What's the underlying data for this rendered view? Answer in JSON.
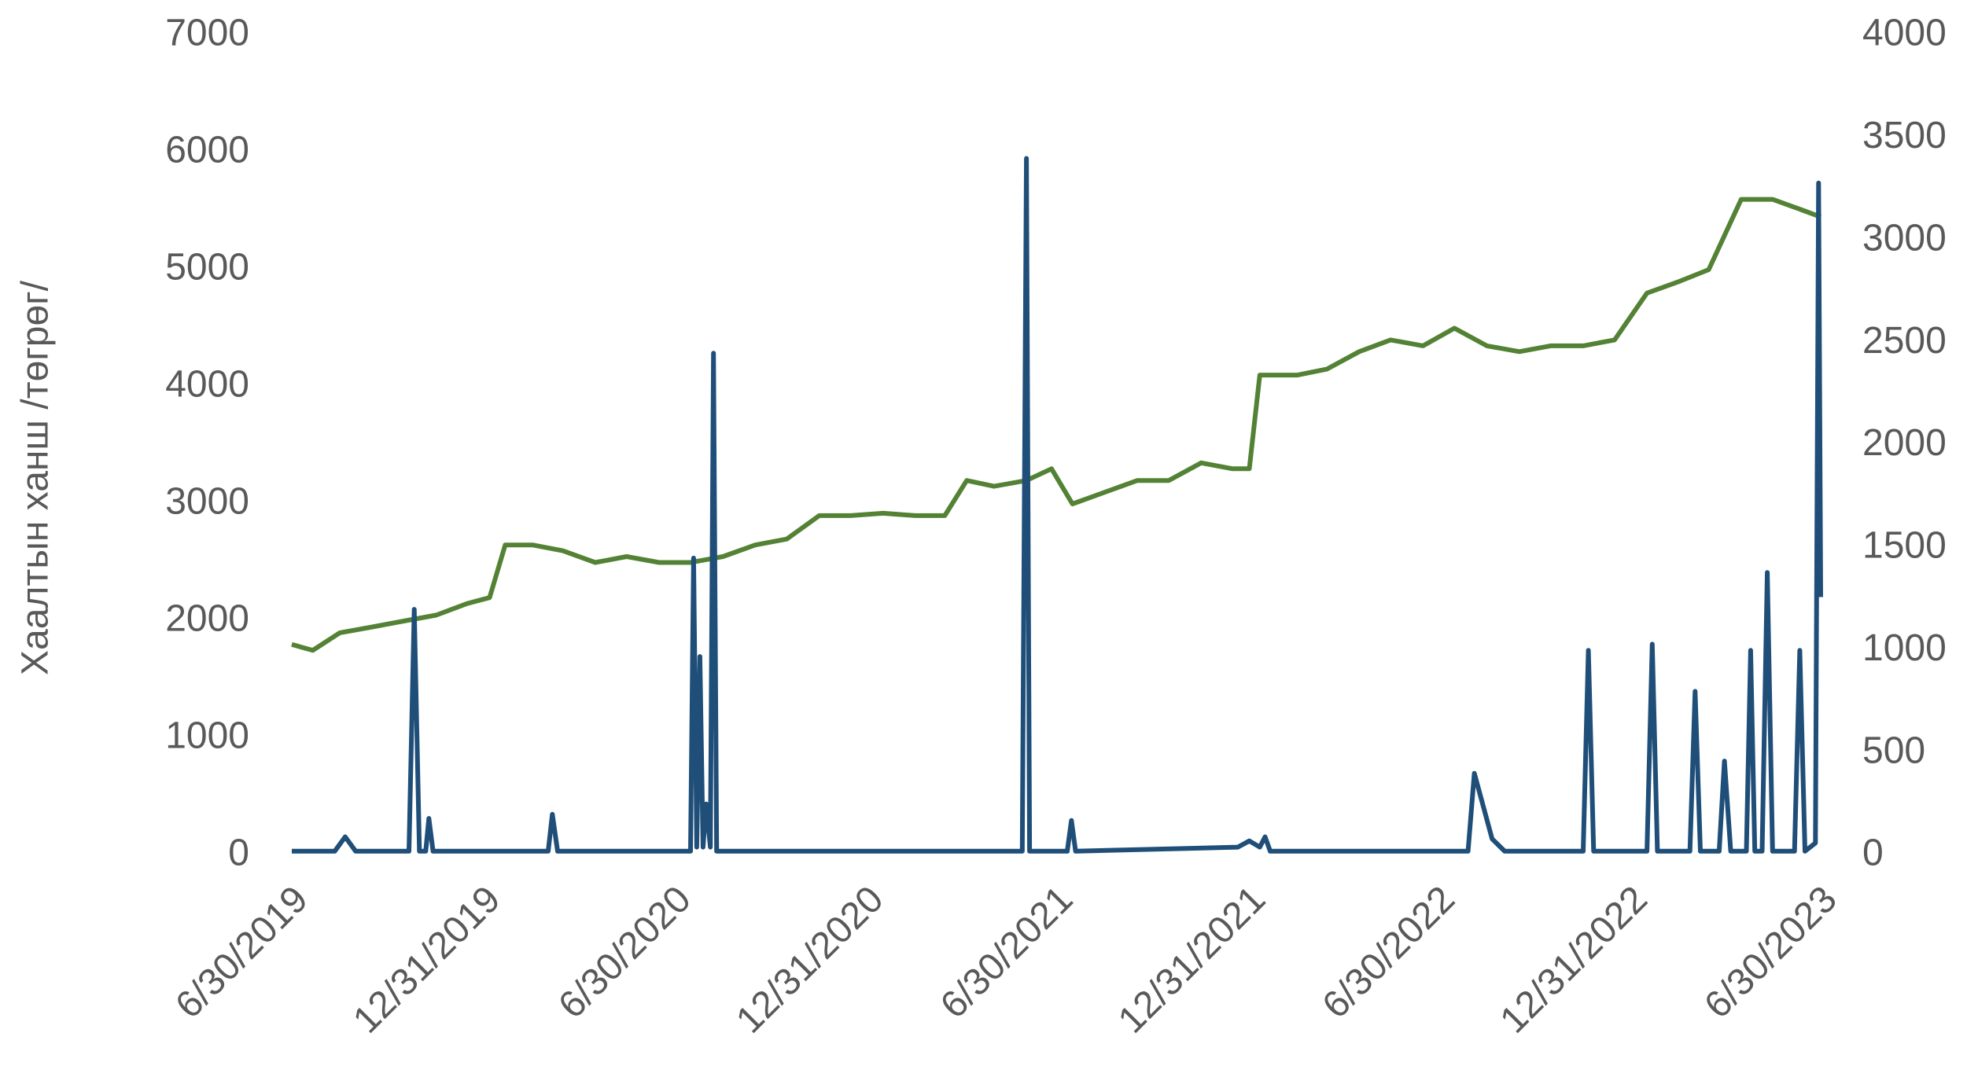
{
  "chart_data": {
    "type": "line",
    "ylabel": "Хаалтын ханш /төгрөг/",
    "xlim": [
      "6/30/2019",
      "6/30/2023"
    ],
    "xticks": [
      "6/30/2019",
      "12/31/2019",
      "6/30/2020",
      "12/31/2020",
      "6/30/2021",
      "12/31/2021",
      "6/30/2022",
      "12/31/2022",
      "6/30/2023"
    ],
    "ylim": [
      0,
      7000
    ],
    "yticks": [
      0,
      1000,
      2000,
      3000,
      4000,
      5000,
      6000,
      7000
    ],
    "y2lim": [
      0,
      4000
    ],
    "y2ticks": [
      0,
      500,
      1000,
      1500,
      2000,
      2500,
      3000,
      3500,
      4000
    ],
    "series": [
      {
        "color": "#548235",
        "x": [
          "6/30/2019",
          "7/20/2019",
          "8/15/2019",
          "9/15/2019",
          "10/15/2019",
          "11/15/2019",
          "12/15/2019",
          "1/5/2020",
          "1/20/2020",
          "2/15/2020",
          "3/15/2020",
          "4/15/2020",
          "5/15/2020",
          "6/15/2020",
          "7/15/2020",
          "8/15/2020",
          "9/15/2020",
          "10/15/2020",
          "11/15/2020",
          "12/15/2020",
          "1/15/2021",
          "2/15/2021",
          "3/15/2021",
          "4/5/2021",
          "5/1/2021",
          "6/1/2021",
          "6/25/2021",
          "7/15/2021",
          "8/15/2021",
          "9/15/2021",
          "10/15/2021",
          "11/15/2021",
          "12/15/2021",
          "12/31/2021",
          "1/10/2022",
          "2/15/2022",
          "3/15/2022",
          "4/15/2022",
          "5/15/2022",
          "6/15/2022",
          "7/15/2022",
          "8/15/2022",
          "9/15/2022",
          "10/15/2022",
          "11/15/2022",
          "12/15/2022",
          "1/15/2023",
          "2/15/2023",
          "3/15/2023",
          "4/15/2023",
          "5/15/2023",
          "6/15/2023",
          "6/30/2023"
        ],
        "values": [
          1800,
          1750,
          1900,
          1950,
          2000,
          2050,
          2150,
          2200,
          2650,
          2650,
          2600,
          2500,
          2550,
          2500,
          2500,
          2550,
          2650,
          2700,
          2900,
          2900,
          2920,
          2900,
          2900,
          3200,
          3150,
          3200,
          3300,
          3000,
          3100,
          3200,
          3200,
          3350,
          3300,
          3300,
          4100,
          4100,
          4150,
          4300,
          4400,
          4350,
          4500,
          4350,
          4300,
          4350,
          4350,
          4400,
          4800,
          4900,
          5000,
          5600,
          5600,
          5500,
          5450
        ]
      },
      {
        "color": "#1f4e79",
        "axis": "y2",
        "x": [
          "6/30/2019",
          "8/10/2019",
          "8/20/2019",
          "8/30/2019",
          "10/20/2019",
          "10/25/2019",
          "10/30/2019",
          "11/5/2019",
          "11/8/2019",
          "11/12/2019",
          "3/1/2020",
          "3/5/2020",
          "3/10/2020",
          "7/15/2020",
          "7/18/2020",
          "7/21/2020",
          "7/24/2020",
          "7/27/2020",
          "7/30/2020",
          "8/3/2020",
          "8/6/2020",
          "8/9/2020",
          "5/28/2021",
          "6/1/2021",
          "6/4/2021",
          "7/10/2021",
          "7/14/2021",
          "7/18/2021",
          "12/20/2021",
          "12/31/2021",
          "1/10/2022",
          "1/15/2022",
          "1/20/2022",
          "7/28/2022",
          "8/3/2022",
          "8/20/2022",
          "9/1/2022",
          "11/15/2022",
          "11/20/2022",
          "11/25/2022",
          "1/15/2023",
          "1/20/2023",
          "1/25/2023",
          "2/25/2023",
          "3/2/2023",
          "3/7/2023",
          "3/25/2023",
          "3/30/2023",
          "4/5/2023",
          "4/20/2023",
          "4/24/2023",
          "4/28/2023",
          "5/5/2023",
          "5/10/2023",
          "5/15/2023",
          "6/5/2023",
          "6/10/2023",
          "6/15/2023",
          "6/25/2023",
          "6/28/2023",
          "6/30/2023"
        ],
        "values": [
          20,
          20,
          90,
          20,
          20,
          1200,
          20,
          20,
          180,
          20,
          20,
          200,
          20,
          20,
          1450,
          40,
          970,
          40,
          250,
          40,
          2450,
          20,
          20,
          3400,
          20,
          20,
          170,
          20,
          40,
          70,
          40,
          90,
          20,
          20,
          400,
          80,
          20,
          20,
          1000,
          20,
          20,
          1030,
          20,
          20,
          800,
          20,
          20,
          460,
          20,
          20,
          1000,
          20,
          20,
          1380,
          20,
          20,
          1000,
          20,
          60,
          3280,
          1260
        ]
      }
    ]
  }
}
